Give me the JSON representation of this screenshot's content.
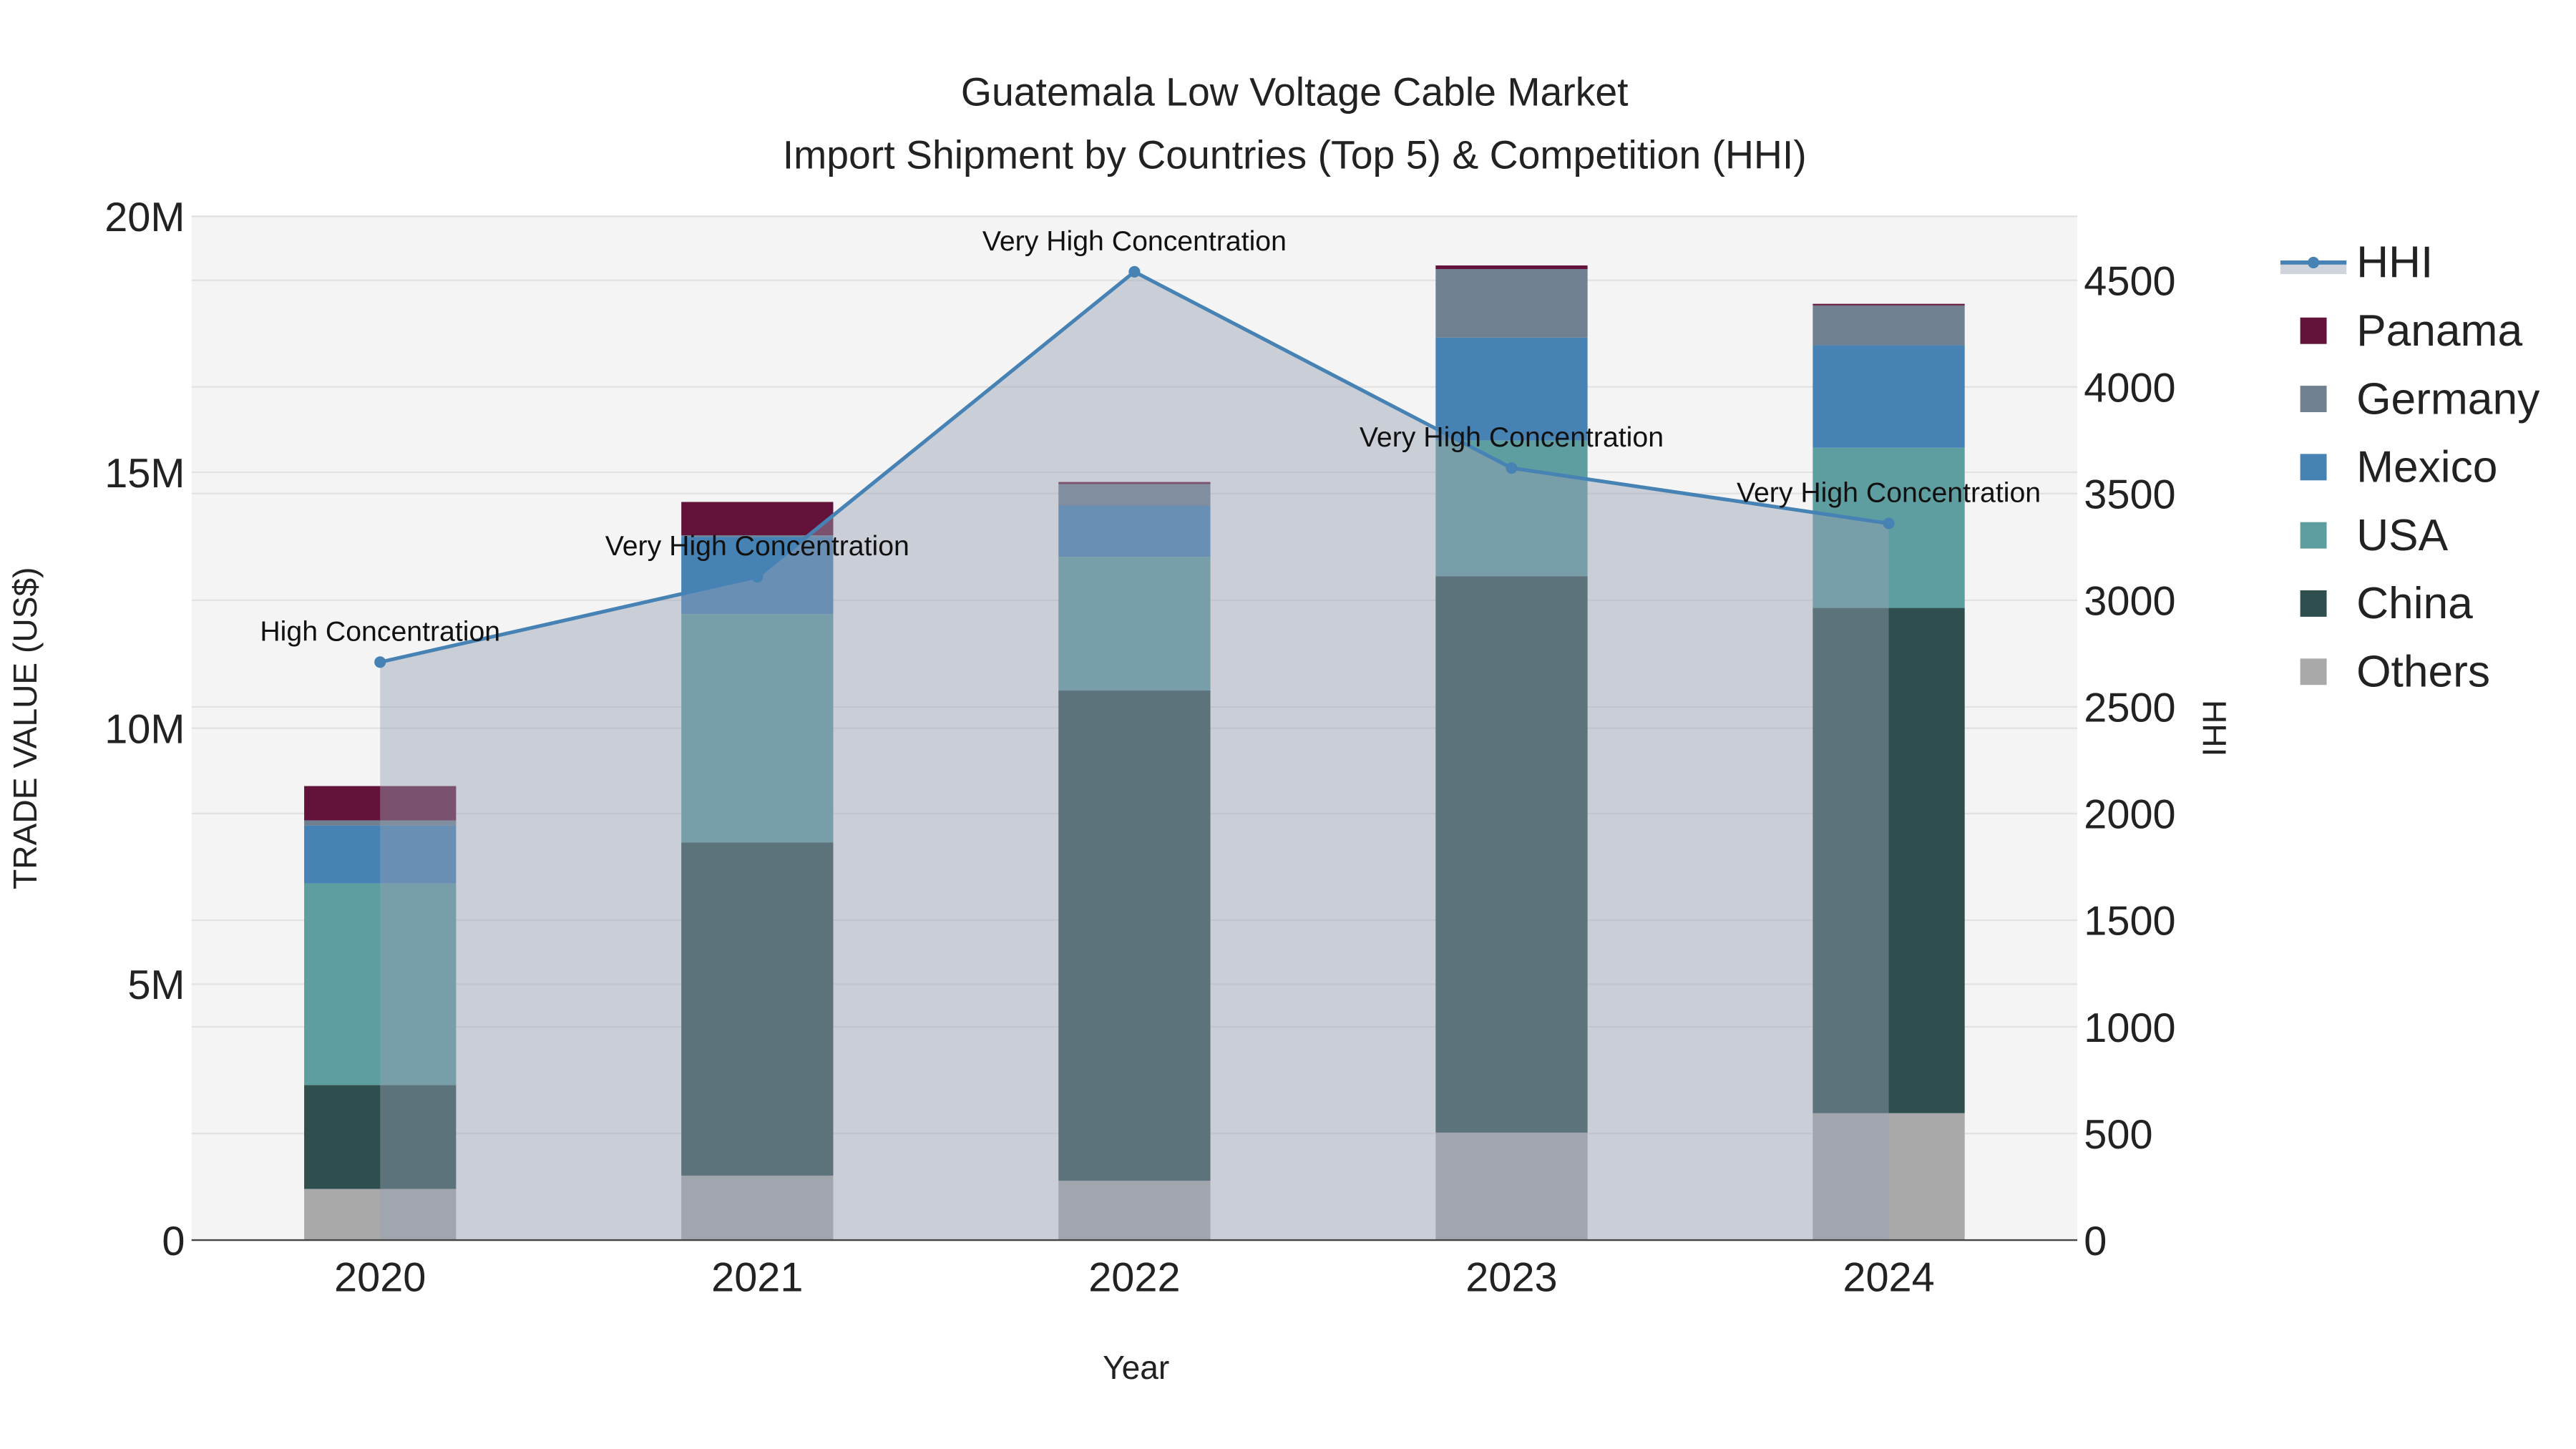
{
  "chart_data": {
    "type": "bar",
    "stacked": true,
    "title": "Guatemala Low Voltage Cable Market",
    "subtitle": "Import Shipment by Countries (Top 5) & Competition (HHI)",
    "xlabel": "Year",
    "ylabel": "TRADE VALUE (US$)",
    "y2label": "HHI",
    "categories": [
      "2020",
      "2021",
      "2022",
      "2023",
      "2024"
    ],
    "ylim": [
      0,
      20000000
    ],
    "y2lim": [
      0,
      4800
    ],
    "yticks": [
      {
        "v": 0,
        "label": "0"
      },
      {
        "v": 5000000,
        "label": "5M"
      },
      {
        "v": 10000000,
        "label": "10M"
      },
      {
        "v": 15000000,
        "label": "15M"
      },
      {
        "v": 20000000,
        "label": "20M"
      }
    ],
    "y2ticks": [
      {
        "v": 0,
        "label": "0"
      },
      {
        "v": 500,
        "label": "500"
      },
      {
        "v": 1000,
        "label": "1000"
      },
      {
        "v": 1500,
        "label": "1500"
      },
      {
        "v": 2000,
        "label": "2000"
      },
      {
        "v": 2500,
        "label": "2500"
      },
      {
        "v": 3000,
        "label": "3000"
      },
      {
        "v": 3500,
        "label": "3500"
      },
      {
        "v": 4000,
        "label": "4000"
      },
      {
        "v": 4500,
        "label": "4500"
      }
    ],
    "series": [
      {
        "name": "Others",
        "color": "#a9a9a9",
        "values": [
          1000000,
          1260000,
          1160000,
          2100000,
          2480000
        ]
      },
      {
        "name": "China",
        "color": "#2f4f4f",
        "values": [
          2030000,
          6510000,
          9580000,
          10870000,
          9870000
        ]
      },
      {
        "name": "USA",
        "color": "#5f9ea0",
        "values": [
          3940000,
          4460000,
          2610000,
          2650000,
          3130000
        ]
      },
      {
        "name": "Mexico",
        "color": "#4682b4",
        "values": [
          1130000,
          1510000,
          1000000,
          2010000,
          2000000
        ]
      },
      {
        "name": "Germany",
        "color": "#708090",
        "values": [
          100000,
          30000,
          420000,
          1340000,
          780000
        ]
      },
      {
        "name": "Panama",
        "color": "#63133a",
        "values": [
          670000,
          650000,
          40000,
          70000,
          30000
        ]
      }
    ],
    "hhi": {
      "name": "HHI",
      "color": "#4682b4",
      "values": [
        2710,
        3110,
        4540,
        3620,
        3360
      ],
      "annotations": [
        "High Concentration",
        "Very High Concentration",
        "Very High Concentration",
        "Very High Concentration",
        "Very High Concentration"
      ]
    },
    "legend": {
      "placement": "right",
      "order": [
        "HHI",
        "Panama",
        "Germany",
        "Mexico",
        "USA",
        "China",
        "Others"
      ]
    },
    "grid": true
  }
}
